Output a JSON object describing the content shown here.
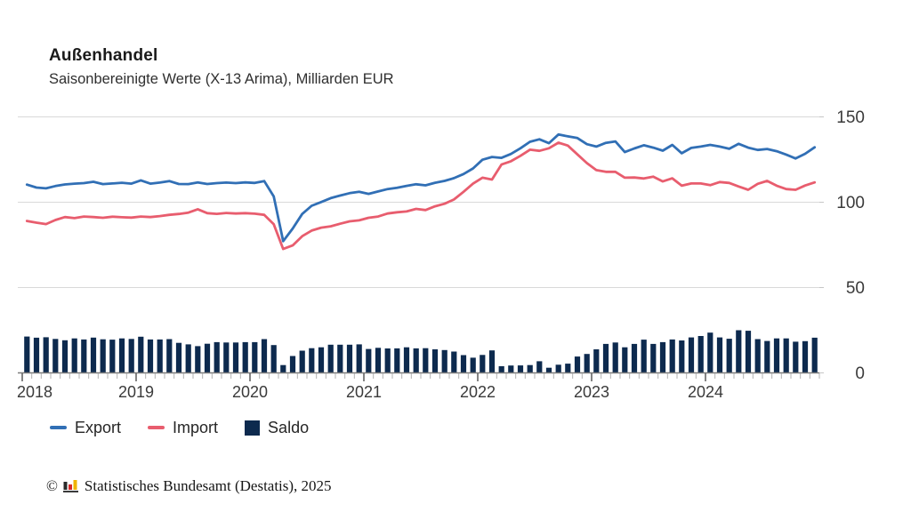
{
  "header": {
    "title": "Außenhandel",
    "subtitle": "Saisonbereinigte Werte (X-13 Arima), Milliarden EUR"
  },
  "legend": [
    {
      "label": "Export",
      "color": "#316fb5",
      "swatch": "line"
    },
    {
      "label": "Import",
      "color": "#e85d6e",
      "swatch": "line"
    },
    {
      "label": "Saldo",
      "color": "#0d2a4e",
      "swatch": "square"
    }
  ],
  "footer": {
    "copyright": "©",
    "source": "Statistisches Bundesamt (Destatis), 2025",
    "logo_colors": {
      "bar1": "#2b2b2b",
      "bar2": "#d42a2a",
      "bar3": "#f0b500",
      "base": "#3a3a3a"
    }
  },
  "colors": {
    "export_blue": "#316fb5",
    "import_red": "#e85d6e",
    "saldo_navy": "#0d2a4e",
    "gridline": "#d9d9d9",
    "axis": "#7d7d7d",
    "tick_minor": "#b3b3b3",
    "tick_major": "#4f4f4f",
    "axis_text": "#3a3a3a"
  },
  "chart_data": {
    "type": "line+bar",
    "title": "Außenhandel",
    "subtitle": "Saisonbereinigte Werte (X-13 Arima), Milliarden EUR",
    "unit": "Milliarden EUR",
    "grid": true,
    "legend_position": "bottom",
    "x": {
      "start": "2018-01",
      "end": "2024-12",
      "frequency": "monthly",
      "tick_labels": [
        "2018",
        "2019",
        "2020",
        "2021",
        "2022",
        "2023",
        "2024"
      ]
    },
    "y_axis": {
      "side": "right",
      "ticks": [
        0,
        50,
        100,
        150
      ],
      "ylim": [
        0,
        155
      ]
    },
    "series": [
      {
        "name": "Export",
        "type": "line",
        "color": "#316fb5",
        "values": [
          110.3,
          108.6,
          108.1,
          109.5,
          110.4,
          110.9,
          111.2,
          112.0,
          110.6,
          111.0,
          111.4,
          110.9,
          112.8,
          110.9,
          111.5,
          112.4,
          110.7,
          110.6,
          111.6,
          110.7,
          111.2,
          111.5,
          111.2,
          111.6,
          111.3,
          112.4,
          103.4,
          77.2,
          84.6,
          93.1,
          97.9,
          100.1,
          102.4,
          103.9,
          105.3,
          106.1,
          104.9,
          106.3,
          107.7,
          108.5,
          109.6,
          110.5,
          109.9,
          111.4,
          112.5,
          114.1,
          116.5,
          119.8,
          124.9,
          126.5,
          126.0,
          128.3,
          131.6,
          135.4,
          136.9,
          134.6,
          139.7,
          138.6,
          137.6,
          134.0,
          132.6,
          134.8,
          135.6,
          129.4,
          131.5,
          133.4,
          132.0,
          130.2,
          133.6,
          128.7,
          131.8,
          132.6,
          133.6,
          132.6,
          131.3,
          134.2,
          132.0,
          130.6,
          131.2,
          129.9,
          127.9,
          125.6,
          128.4,
          132.2
        ]
      },
      {
        "name": "Import",
        "type": "line",
        "color": "#e85d6e",
        "values": [
          89.0,
          88.0,
          87.2,
          89.6,
          91.3,
          90.7,
          91.6,
          91.3,
          90.9,
          91.5,
          91.2,
          91.0,
          91.6,
          91.3,
          91.9,
          92.6,
          93.1,
          93.9,
          95.9,
          93.6,
          93.2,
          93.7,
          93.4,
          93.6,
          93.3,
          92.6,
          87.1,
          72.6,
          74.7,
          80.1,
          83.4,
          85.1,
          85.9,
          87.4,
          88.8,
          89.4,
          90.9,
          91.6,
          93.4,
          94.1,
          94.6,
          96.1,
          95.4,
          97.6,
          99.1,
          101.6,
          106.1,
          110.9,
          114.4,
          113.3,
          122.1,
          124.0,
          127.2,
          130.8,
          130.1,
          131.6,
          134.9,
          133.2,
          128.0,
          122.9,
          118.8,
          117.8,
          117.8,
          114.4,
          114.5,
          113.9,
          115.0,
          112.2,
          114.0,
          109.7,
          111.0,
          111.0,
          110.0,
          111.8,
          111.3,
          109.2,
          107.3,
          110.8,
          112.5,
          109.7,
          107.7,
          107.3,
          109.8,
          111.6
        ]
      },
      {
        "name": "Saldo",
        "type": "bar",
        "color": "#0d2a4e",
        "values": [
          21.3,
          20.6,
          20.9,
          19.9,
          19.1,
          20.2,
          19.6,
          20.7,
          19.7,
          19.5,
          20.2,
          19.9,
          21.2,
          19.6,
          19.6,
          19.8,
          17.6,
          16.7,
          15.7,
          17.1,
          18.0,
          17.8,
          17.8,
          18.0,
          18.0,
          19.8,
          16.3,
          4.6,
          9.9,
          13.0,
          14.5,
          15.0,
          16.5,
          16.5,
          16.5,
          16.7,
          14.0,
          14.7,
          14.3,
          14.4,
          15.0,
          14.4,
          14.5,
          13.8,
          13.4,
          12.5,
          10.4,
          8.9,
          10.5,
          13.2,
          3.9,
          4.3,
          4.4,
          4.6,
          6.8,
          3.0,
          4.8,
          5.4,
          9.6,
          11.1,
          13.8,
          17.0,
          17.8,
          15.0,
          17.0,
          19.5,
          17.0,
          18.0,
          19.6,
          19.0,
          20.8,
          21.6,
          23.6,
          20.8,
          20.0,
          25.0,
          24.7,
          19.8,
          18.7,
          20.2,
          20.2,
          18.3,
          18.6,
          20.6
        ]
      }
    ]
  }
}
